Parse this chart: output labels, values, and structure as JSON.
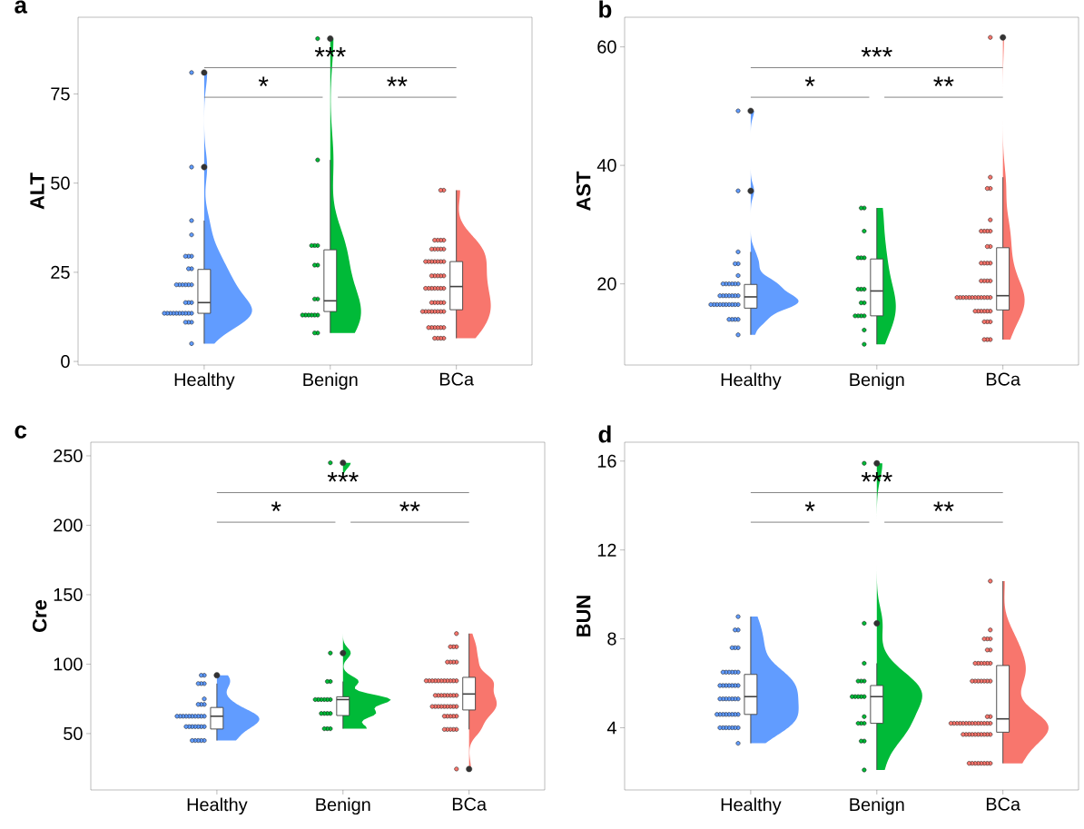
{
  "chart_data": [
    {
      "type": "box",
      "title": "a",
      "ylabel": "ALT",
      "categories": [
        "Healthy",
        "Benign",
        "BCa"
      ],
      "ylim": [
        -1,
        96.5
      ],
      "yticks": [
        0,
        25,
        50,
        75
      ],
      "marker": "circle",
      "boxes": [
        {
          "low": 5,
          "q1": 13.5,
          "median": 16.5,
          "q3": 25.8,
          "high": 39.5,
          "outliers": [
            54.5,
            81
          ]
        },
        {
          "low": 8,
          "q1": 14,
          "median": 17,
          "q3": 31.3,
          "high": 56.5,
          "outliers": [
            90.5
          ]
        },
        {
          "low": 6.5,
          "q1": 14.5,
          "median": 21,
          "q3": 28,
          "high": 48
        }
      ],
      "series": [
        {
          "type": "scatter",
          "color": "#619cff",
          "x": [
            "Healthy",
            "Healthy",
            "Healthy",
            "Healthy",
            "Healthy",
            "Healthy",
            "Healthy",
            "Healthy",
            "Healthy",
            "Healthy",
            "Healthy",
            "Healthy",
            "Healthy",
            "Healthy",
            "Healthy",
            "Healthy",
            "Healthy",
            "Healthy",
            "Healthy",
            "Healthy",
            "Healthy",
            "Healthy",
            "Healthy",
            "Healthy",
            "Healthy",
            "Healthy",
            "Healthy",
            "Healthy",
            "Healthy",
            "Healthy",
            "Healthy",
            "Healthy"
          ],
          "values": [
            81,
            54.5,
            39.5,
            35.5,
            29.5,
            29.5,
            29.5,
            26,
            26,
            21.5,
            21.5,
            21.5,
            21.5,
            21.5,
            21.5,
            16.5,
            16.5,
            16.5,
            13.5,
            13.5,
            13.5,
            13.5,
            13.5,
            13.5,
            13.5,
            13.5,
            13.5,
            13.5,
            11,
            11,
            11,
            5
          ]
        },
        {
          "type": "scatter",
          "color": "#00ba38",
          "x": [
            "Benign",
            "Benign",
            "Benign",
            "Benign",
            "Benign",
            "Benign",
            "Benign",
            "Benign",
            "Benign",
            "Benign",
            "Benign",
            "Benign",
            "Benign",
            "Benign",
            "Benign",
            "Benign",
            "Benign"
          ],
          "values": [
            90.5,
            56.5,
            32.5,
            32.5,
            32.5,
            27,
            27,
            17.5,
            17.5,
            13,
            13,
            13,
            13,
            13,
            13,
            8,
            8
          ]
        },
        {
          "type": "scatter",
          "color": "#f8766d",
          "x": [
            "BCa",
            "BCa",
            "BCa",
            "BCa",
            "BCa",
            "BCa",
            "BCa",
            "BCa",
            "BCa",
            "BCa",
            "BCa",
            "BCa",
            "BCa",
            "BCa",
            "BCa",
            "BCa",
            "BCa",
            "BCa",
            "BCa",
            "BCa",
            "BCa",
            "BCa",
            "BCa",
            "BCa",
            "BCa",
            "BCa",
            "BCa",
            "BCa",
            "BCa",
            "BCa",
            "BCa",
            "BCa",
            "BCa",
            "BCa",
            "BCa",
            "BCa",
            "BCa",
            "BCa",
            "BCa",
            "BCa",
            "BCa",
            "BCa",
            "BCa",
            "BCa",
            "BCa",
            "BCa",
            "BCa",
            "BCa",
            "BCa",
            "BCa",
            "BCa",
            "BCa",
            "BCa"
          ],
          "values": [
            48,
            48,
            34,
            34,
            34,
            34,
            31.5,
            31.5,
            31.5,
            31.5,
            31.5,
            28,
            28,
            28,
            28,
            28,
            28,
            28,
            24,
            24,
            24,
            24,
            24,
            20.5,
            20.5,
            20.5,
            20.5,
            20.5,
            20.5,
            20.5,
            16.5,
            16.5,
            16.5,
            16.5,
            16.5,
            14,
            14,
            14,
            14,
            14,
            14,
            14,
            14,
            9.5,
            9.5,
            9.5,
            9.5,
            9.5,
            9.5,
            6.5,
            6.5,
            6.5,
            6.5
          ]
        }
      ],
      "annotations": [
        "***",
        "*",
        "**"
      ]
    },
    {
      "type": "box",
      "title": "b",
      "ylabel": "AST",
      "categories": [
        "Healthy",
        "Benign",
        "BCa"
      ],
      "ylim": [
        6.3,
        65
      ],
      "yticks": [
        20,
        40,
        60
      ],
      "marker": "circle",
      "boxes": [
        {
          "low": 11.4,
          "q1": 15.9,
          "median": 17.8,
          "q3": 19.9,
          "high": 25.4,
          "outliers": [
            35.7,
            49.2
          ]
        },
        {
          "low": 9.8,
          "q1": 14.6,
          "median": 18.8,
          "q3": 24.2,
          "high": 32.8
        },
        {
          "low": 10.6,
          "q1": 15.6,
          "median": 18,
          "q3": 26.1,
          "high": 38,
          "outliers": [
            61.6
          ]
        }
      ],
      "series": [
        {
          "type": "scatter",
          "color": "#619cff",
          "x": [
            "Healthy",
            "Healthy",
            "Healthy",
            "Healthy",
            "Healthy",
            "Healthy",
            "Healthy",
            "Healthy",
            "Healthy",
            "Healthy",
            "Healthy",
            "Healthy",
            "Healthy",
            "Healthy",
            "Healthy",
            "Healthy",
            "Healthy",
            "Healthy",
            "Healthy",
            "Healthy",
            "Healthy",
            "Healthy",
            "Healthy",
            "Healthy",
            "Healthy",
            "Healthy",
            "Healthy",
            "Healthy",
            "Healthy",
            "Healthy",
            "Healthy",
            "Healthy",
            "Healthy",
            "Healthy"
          ],
          "values": [
            49.2,
            35.7,
            25.4,
            23.4,
            23.4,
            21.4,
            20,
            20,
            20,
            20,
            20,
            20,
            18,
            18,
            18,
            18,
            18,
            18,
            18,
            16.5,
            16.5,
            16.5,
            16.5,
            16.5,
            16.5,
            16.5,
            16.5,
            16.5,
            16.5,
            14,
            14,
            14,
            14,
            11.4
          ]
        },
        {
          "type": "scatter",
          "color": "#00ba38",
          "x": [
            "Benign",
            "Benign",
            "Benign",
            "Benign",
            "Benign",
            "Benign",
            "Benign",
            "Benign",
            "Benign",
            "Benign",
            "Benign",
            "Benign",
            "Benign",
            "Benign",
            "Benign",
            "Benign",
            "Benign"
          ],
          "values": [
            32.8,
            32.8,
            28.9,
            24.4,
            24.4,
            24.4,
            19.1,
            19.1,
            19.1,
            16.8,
            16.8,
            14.6,
            14.6,
            14.6,
            14.6,
            12.2,
            9.8
          ]
        },
        {
          "type": "scatter",
          "color": "#f8766d",
          "x": [
            "BCa",
            "BCa",
            "BCa",
            "BCa",
            "BCa",
            "BCa",
            "BCa",
            "BCa",
            "BCa",
            "BCa",
            "BCa",
            "BCa",
            "BCa",
            "BCa",
            "BCa",
            "BCa",
            "BCa",
            "BCa",
            "BCa",
            "BCa",
            "BCa",
            "BCa",
            "BCa",
            "BCa",
            "BCa",
            "BCa",
            "BCa",
            "BCa",
            "BCa",
            "BCa",
            "BCa",
            "BCa",
            "BCa",
            "BCa",
            "BCa",
            "BCa",
            "BCa",
            "BCa",
            "BCa",
            "BCa",
            "BCa",
            "BCa",
            "BCa"
          ],
          "values": [
            61.6,
            38,
            36.1,
            36.1,
            30.8,
            28.9,
            28.9,
            28.9,
            28.9,
            26.3,
            26.3,
            23.5,
            23.5,
            23.5,
            23.5,
            20.5,
            20.5,
            20.5,
            20.5,
            17.7,
            17.7,
            17.7,
            17.7,
            17.7,
            17.7,
            17.7,
            17.7,
            17.7,
            17.7,
            17.7,
            17.7,
            15.4,
            15.4,
            15.4,
            15.4,
            15.4,
            15.4,
            13.6,
            13.6,
            13.6,
            10.6,
            10.6,
            10.6
          ]
        }
      ],
      "annotations": [
        "***",
        "*",
        "**"
      ]
    },
    {
      "type": "box",
      "title": "c",
      "ylabel": "Cre",
      "categories": [
        "Healthy",
        "Benign",
        "BCa"
      ],
      "ylim": [
        9.4,
        259.8
      ],
      "yticks": [
        50,
        100,
        150,
        200,
        250
      ],
      "marker": "circle",
      "boxes": [
        {
          "low": 45,
          "q1": 53.3,
          "median": 62.5,
          "q3": 68.8,
          "high": 86,
          "outliers": [
            92
          ]
        },
        {
          "low": 53.5,
          "q1": 63,
          "median": 74.5,
          "q3": 76.5,
          "high": 87.5,
          "outliers": [
            108,
            245
          ]
        },
        {
          "low": 53,
          "q1": 67,
          "median": 78.5,
          "q3": 90.5,
          "high": 122,
          "outliers": [
            24.5
          ]
        }
      ],
      "series": [
        {
          "type": "scatter",
          "color": "#619cff",
          "x": [
            "Healthy",
            "Healthy",
            "Healthy",
            "Healthy",
            "Healthy",
            "Healthy",
            "Healthy",
            "Healthy",
            "Healthy",
            "Healthy",
            "Healthy",
            "Healthy",
            "Healthy",
            "Healthy",
            "Healthy",
            "Healthy",
            "Healthy",
            "Healthy",
            "Healthy",
            "Healthy",
            "Healthy",
            "Healthy",
            "Healthy",
            "Healthy",
            "Healthy",
            "Healthy",
            "Healthy",
            "Healthy",
            "Healthy",
            "Healthy",
            "Healthy"
          ],
          "values": [
            92,
            92,
            86,
            86,
            86,
            75,
            71,
            71,
            71,
            62.5,
            62.5,
            62.5,
            62.5,
            62.5,
            62.5,
            62.5,
            62.5,
            62.5,
            62.5,
            55,
            55,
            55,
            55,
            55,
            55,
            55,
            45,
            45,
            45,
            45,
            45
          ]
        },
        {
          "type": "scatter",
          "color": "#00ba38",
          "x": [
            "Benign",
            "Benign",
            "Benign",
            "Benign",
            "Benign",
            "Benign",
            "Benign",
            "Benign",
            "Benign",
            "Benign",
            "Benign",
            "Benign",
            "Benign",
            "Benign",
            "Benign",
            "Benign",
            "Benign"
          ],
          "values": [
            245,
            108,
            87.5,
            87.5,
            74.5,
            74.5,
            74.5,
            74.5,
            74.5,
            74.5,
            64.5,
            64.5,
            64.5,
            64.5,
            53.5,
            53.5,
            53.5
          ]
        },
        {
          "type": "scatter",
          "color": "#f8766d",
          "x": [
            "BCa",
            "BCa",
            "BCa",
            "BCa",
            "BCa",
            "BCa",
            "BCa",
            "BCa",
            "BCa",
            "BCa",
            "BCa",
            "BCa",
            "BCa",
            "BCa",
            "BCa",
            "BCa",
            "BCa",
            "BCa",
            "BCa",
            "BCa",
            "BCa",
            "BCa",
            "BCa",
            "BCa",
            "BCa",
            "BCa",
            "BCa",
            "BCa",
            "BCa",
            "BCa",
            "BCa",
            "BCa",
            "BCa",
            "BCa",
            "BCa",
            "BCa",
            "BCa",
            "BCa",
            "BCa",
            "BCa",
            "BCa",
            "BCa",
            "BCa",
            "BCa",
            "BCa",
            "BCa",
            "BCa"
          ],
          "values": [
            122,
            112.5,
            112.5,
            112.5,
            101.5,
            101.5,
            101.5,
            101.5,
            88,
            88,
            88,
            88,
            88,
            88,
            88,
            88,
            88,
            88,
            88,
            77.5,
            77.5,
            77.5,
            77.5,
            77.5,
            77.5,
            77.5,
            77.5,
            69.5,
            69.5,
            69.5,
            69.5,
            69.5,
            69.5,
            69.5,
            69.5,
            69.5,
            62.5,
            62.5,
            62.5,
            62.5,
            62.5,
            53,
            53,
            53,
            53,
            53,
            24.5
          ]
        }
      ],
      "annotations": [
        "***",
        "*",
        "**"
      ]
    },
    {
      "type": "box",
      "title": "d",
      "ylabel": "BUN",
      "categories": [
        "Healthy",
        "Benign",
        "BCa"
      ],
      "ylim": [
        1.2,
        16.85
      ],
      "yticks": [
        4,
        8,
        12,
        16
      ],
      "marker": "circle",
      "boxes": [
        {
          "low": 3.3,
          "q1": 4.6,
          "median": 5.4,
          "q3": 6.4,
          "high": 9
        },
        {
          "low": 2.1,
          "q1": 4.2,
          "median": 5.4,
          "q3": 5.9,
          "high": 6.9,
          "outliers": [
            8.7,
            15.9
          ]
        },
        {
          "low": 2.4,
          "q1": 3.8,
          "median": 4.4,
          "q3": 6.8,
          "high": 10.6
        }
      ],
      "series": [
        {
          "type": "scatter",
          "color": "#619cff",
          "x": [
            "Healthy",
            "Healthy",
            "Healthy",
            "Healthy",
            "Healthy",
            "Healthy",
            "Healthy",
            "Healthy",
            "Healthy",
            "Healthy",
            "Healthy",
            "Healthy",
            "Healthy",
            "Healthy",
            "Healthy",
            "Healthy",
            "Healthy",
            "Healthy",
            "Healthy",
            "Healthy",
            "Healthy",
            "Healthy",
            "Healthy",
            "Healthy",
            "Healthy",
            "Healthy",
            "Healthy",
            "Healthy",
            "Healthy",
            "Healthy",
            "Healthy",
            "Healthy",
            "Healthy",
            "Healthy",
            "Healthy",
            "Healthy",
            "Healthy",
            "Healthy",
            "Healthy",
            "Healthy",
            "Healthy",
            "Healthy"
          ],
          "values": [
            9,
            8.4,
            8.4,
            7.6,
            7.6,
            7.6,
            6.5,
            6.5,
            6.5,
            6.5,
            6.5,
            6.5,
            5.9,
            5.9,
            5.9,
            5.9,
            5.9,
            5.9,
            5.9,
            5.3,
            5.3,
            5.3,
            5.3,
            5.3,
            5.3,
            5.3,
            4.6,
            4.6,
            4.6,
            4.6,
            4.6,
            4.6,
            4.6,
            4.6,
            4,
            4,
            4,
            4,
            4,
            4,
            4,
            3.3
          ]
        },
        {
          "type": "scatter",
          "color": "#00ba38",
          "x": [
            "Benign",
            "Benign",
            "Benign",
            "Benign",
            "Benign",
            "Benign",
            "Benign",
            "Benign",
            "Benign",
            "Benign",
            "Benign",
            "Benign",
            "Benign",
            "Benign",
            "Benign",
            "Benign",
            "Benign",
            "Benign"
          ],
          "values": [
            15.9,
            8.7,
            6.9,
            6.1,
            6.1,
            6.1,
            5.4,
            5.4,
            5.4,
            5.4,
            5.4,
            4.5,
            4.2,
            4.2,
            4.2,
            3.4,
            3.4,
            2.1
          ]
        },
        {
          "type": "scatter",
          "color": "#f8766d",
          "x": [
            "BCa",
            "BCa",
            "BCa",
            "BCa",
            "BCa",
            "BCa",
            "BCa",
            "BCa",
            "BCa",
            "BCa",
            "BCa",
            "BCa",
            "BCa",
            "BCa",
            "BCa",
            "BCa",
            "BCa",
            "BCa",
            "BCa",
            "BCa",
            "BCa",
            "BCa",
            "BCa",
            "BCa",
            "BCa",
            "BCa",
            "BCa",
            "BCa",
            "BCa",
            "BCa",
            "BCa",
            "BCa",
            "BCa",
            "BCa",
            "BCa",
            "BCa",
            "BCa",
            "BCa",
            "BCa",
            "BCa",
            "BCa",
            "BCa",
            "BCa",
            "BCa",
            "BCa",
            "BCa",
            "BCa",
            "BCa",
            "BCa",
            "BCa",
            "BCa",
            "BCa",
            "BCa",
            "BCa"
          ],
          "values": [
            10.6,
            8.4,
            8,
            8,
            8,
            7.5,
            7.5,
            6.9,
            6.9,
            6.9,
            6.9,
            6.9,
            6.9,
            6.1,
            6.1,
            6.1,
            6.1,
            6.1,
            6.1,
            6.1,
            4.5,
            4.5,
            4.2,
            4.2,
            4.2,
            4.2,
            4.2,
            4.2,
            4.2,
            4.2,
            4.2,
            4.2,
            4.2,
            4.2,
            4.2,
            4.2,
            3.7,
            3.7,
            3.7,
            3.7,
            3.7,
            3.7,
            3.7,
            3.7,
            3.7,
            3.7,
            2.4,
            2.4,
            2.4,
            2.4,
            2.4,
            2.4,
            2.4,
            2.4
          ]
        }
      ],
      "annotations": [
        "***",
        "*",
        "**"
      ]
    }
  ]
}
